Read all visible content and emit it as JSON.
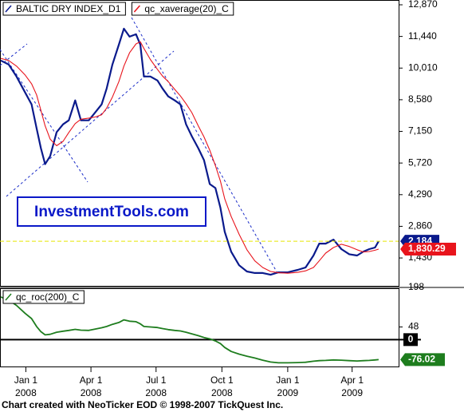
{
  "chart_data": [
    {
      "type": "line",
      "x": [
        "2007-11-27",
        "2007-12-08",
        "2007-12-19",
        "2007-12-31",
        "2008-01-09",
        "2008-01-16",
        "2008-01-22",
        "2008-01-28",
        "2008-02-04",
        "2008-02-13",
        "2008-02-22",
        "2008-03-01",
        "2008-03-10",
        "2008-03-18",
        "2008-03-29",
        "2008-04-07",
        "2008-04-16",
        "2008-04-23",
        "2008-05-01",
        "2008-05-10",
        "2008-05-17",
        "2008-05-25",
        "2008-06-03",
        "2008-06-09",
        "2008-06-14",
        "2008-06-23",
        "2008-07-03",
        "2008-07-10",
        "2008-07-18",
        "2008-07-27",
        "2008-08-04",
        "2008-08-12",
        "2008-08-20",
        "2008-08-29",
        "2008-09-06",
        "2008-09-14",
        "2008-09-22",
        "2008-09-29",
        "2008-10-05",
        "2008-10-14",
        "2008-10-25",
        "2008-11-05",
        "2008-11-16",
        "2008-11-27",
        "2008-12-08",
        "2008-12-19",
        "2009-01-01",
        "2009-01-15",
        "2009-01-26",
        "2009-02-06",
        "2009-02-14",
        "2009-02-23",
        "2009-03-06",
        "2009-03-17",
        "2009-03-28",
        "2009-04-08",
        "2009-04-17",
        "2009-04-25",
        "2009-05-03",
        "2009-05-08"
      ],
      "series": [
        {
          "name": "BALTIC DRY INDEX_D1",
          "color": "#0a1a8c",
          "width": 2.2,
          "last_value_label": "2,184",
          "values": [
            10350,
            10170,
            9630,
            8910,
            8370,
            7290,
            6390,
            5670,
            6030,
            7110,
            7470,
            7650,
            8550,
            7650,
            7650,
            8010,
            8370,
            9090,
            10170,
            11070,
            11790,
            11430,
            11540,
            11070,
            9630,
            9630,
            9450,
            9090,
            8730,
            8550,
            8370,
            7470,
            6930,
            6390,
            5850,
            4770,
            4590,
            3690,
            2610,
            1710,
            1100,
            820,
            750,
            750,
            670,
            780,
            780,
            890,
            1000,
            1540,
            2080,
            2080,
            2260,
            1830,
            1600,
            1540,
            1720,
            1830,
            1900,
            2184
          ]
        },
        {
          "name": "qc_xaverage(20)_C",
          "color": "#e8141c",
          "width": 1.1,
          "last_value_label": "1,830.29",
          "values": [
            10450,
            10350,
            10100,
            9700,
            9300,
            8800,
            8100,
            7400,
            6800,
            6500,
            6700,
            7100,
            7500,
            7700,
            7750,
            7800,
            7900,
            8200,
            8700,
            9400,
            10100,
            10700,
            11100,
            11200,
            10900,
            10400,
            9950,
            9650,
            9400,
            9050,
            8750,
            8400,
            8000,
            7400,
            6900,
            6300,
            5600,
            4900,
            4100,
            3300,
            2500,
            1800,
            1300,
            1000,
            820,
            760,
            740,
            780,
            850,
            1000,
            1300,
            1650,
            1900,
            2050,
            1950,
            1800,
            1700,
            1720,
            1780,
            1830.29
          ]
        }
      ],
      "xlim": [
        "2007-11-27",
        "2009-06-05"
      ],
      "ylim": [
        170,
        13050
      ],
      "yticks": [
        {
          "value": 12870,
          "label": "12,870"
        },
        {
          "value": 11440,
          "label": "11,440"
        },
        {
          "value": 10010,
          "label": "10,010"
        },
        {
          "value": 8580,
          "label": "8,580"
        },
        {
          "value": 7150,
          "label": "7,150"
        },
        {
          "value": 5720,
          "label": "5,720"
        },
        {
          "value": 4290,
          "label": "4,290"
        },
        {
          "value": 2860,
          "label": "2,860"
        },
        {
          "value": 1430,
          "label": "1,430"
        }
      ],
      "watermark": "InvestmentTools.com"
    },
    {
      "type": "line",
      "x": [
        "2007-11-27",
        "2007-12-08",
        "2007-12-19",
        "2007-12-31",
        "2008-01-09",
        "2008-01-16",
        "2008-01-22",
        "2008-01-28",
        "2008-02-04",
        "2008-02-13",
        "2008-02-22",
        "2008-03-01",
        "2008-03-10",
        "2008-03-18",
        "2008-03-29",
        "2008-04-07",
        "2008-04-16",
        "2008-04-23",
        "2008-05-01",
        "2008-05-10",
        "2008-05-17",
        "2008-05-25",
        "2008-06-03",
        "2008-06-09",
        "2008-06-14",
        "2008-06-23",
        "2008-07-03",
        "2008-07-10",
        "2008-07-18",
        "2008-07-27",
        "2008-08-04",
        "2008-08-12",
        "2008-08-20",
        "2008-08-29",
        "2008-09-06",
        "2008-09-14",
        "2008-09-22",
        "2008-09-29",
        "2008-10-05",
        "2008-10-14",
        "2008-10-25",
        "2008-11-05",
        "2008-11-16",
        "2008-11-27",
        "2008-12-08",
        "2008-12-19",
        "2009-01-01",
        "2009-01-15",
        "2009-01-26",
        "2009-02-06",
        "2009-02-14",
        "2009-02-23",
        "2009-03-06",
        "2009-03-17",
        "2009-03-28",
        "2009-04-08",
        "2009-04-17",
        "2009-04-25",
        "2009-05-03",
        "2009-05-08"
      ],
      "series": [
        {
          "name": "qc_roc(200)_C",
          "color": "#1e7d1e",
          "width": 1.8,
          "last_value_label": "-76.02",
          "values": [
            162,
            150,
            130,
            100,
            80,
            50,
            30,
            18,
            20,
            28,
            32,
            35,
            39,
            36,
            35,
            40,
            45,
            50,
            58,
            65,
            75,
            70,
            68,
            60,
            50,
            48,
            46,
            42,
            38,
            35,
            33,
            28,
            22,
            15,
            8,
            3,
            -5,
            -15,
            -30,
            -45,
            -55,
            -63,
            -70,
            -78,
            -85,
            -88,
            -88,
            -87,
            -86,
            -82,
            -80,
            -79,
            -77,
            -78,
            -80,
            -81,
            -80,
            -79,
            -77,
            -76.02
          ]
        }
      ],
      "xlim": [
        "2007-11-27",
        "2009-06-05"
      ],
      "ylim": [
        -102,
        192
      ],
      "yticks": [
        198,
        48
      ],
      "hline": 0,
      "xticks": [
        {
          "value": "2008-01-01",
          "label": "Jan 1",
          "year": "2008"
        },
        {
          "value": "2008-04-01",
          "label": "Apr 1",
          "year": "2008"
        },
        {
          "value": "2008-07-01",
          "label": "Jul 1",
          "year": "2008"
        },
        {
          "value": "2008-10-01",
          "label": "Oct 1",
          "year": "2008"
        },
        {
          "value": "2009-01-01",
          "label": "Jan 1",
          "year": "2009"
        },
        {
          "value": "2009-04-01",
          "label": "Apr 1",
          "year": "2009"
        }
      ]
    }
  ],
  "footer": "Chart created with NeoTicker EOD © 1998-2007 TickQuest Inc."
}
